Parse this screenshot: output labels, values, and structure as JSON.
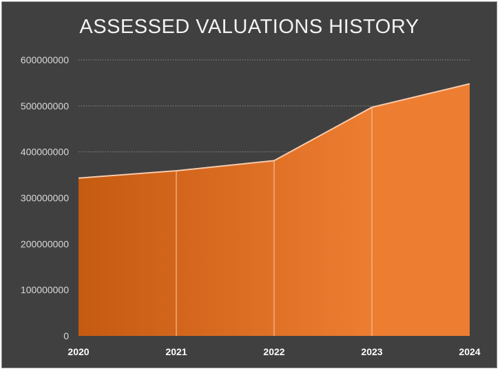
{
  "chart_data": {
    "type": "area",
    "title": "ASSESSED VALUATIONS HISTORY",
    "xlabel": "",
    "ylabel": "",
    "categories": [
      "2020",
      "2021",
      "2022",
      "2023",
      "2024"
    ],
    "series": [
      {
        "values": [
          343000000,
          359000000,
          381000000,
          497000000,
          548000000
        ]
      }
    ],
    "ylim": [
      0,
      600000000
    ],
    "yticks": [
      0,
      100000000,
      200000000,
      300000000,
      400000000,
      500000000,
      600000000
    ],
    "ytick_labels": [
      "0",
      "100000000",
      "200000000",
      "300000000",
      "400000000",
      "500000000",
      "600000000"
    ],
    "grid": true,
    "legend": "none",
    "colors": {
      "background": "#404040",
      "fill_start": "#c55a11",
      "fill_end": "#ed7d31",
      "line": "#f8cbad",
      "grid": "#8c8c8c",
      "text": "#d9d9d9"
    }
  }
}
